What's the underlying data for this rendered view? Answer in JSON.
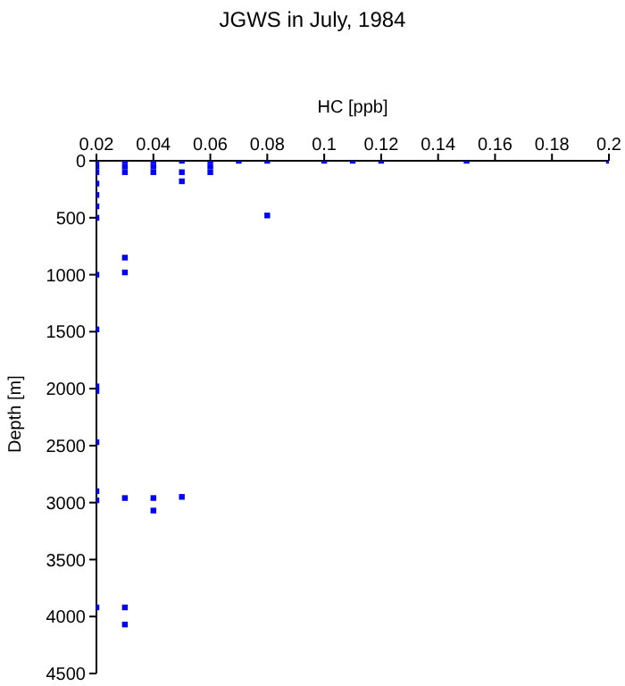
{
  "chart_data": {
    "type": "scatter",
    "title": "JGWS in July, 1984",
    "xlabel": "HC [ppb]",
    "ylabel": "Depth [m]",
    "series": [
      {
        "color": "#0000ff",
        "x": [
          0.02,
          0.02,
          0.02,
          0.02,
          0.02,
          0.02,
          0.02,
          0.02,
          0.02,
          0.02,
          0.02,
          0.02,
          0.02,
          0.02,
          0.02,
          0.03,
          0.03,
          0.03,
          0.03,
          0.03,
          0.03,
          0.03,
          0.03,
          0.04,
          0.04,
          0.04,
          0.04,
          0.04,
          0.05,
          0.05,
          0.05,
          0.05,
          0.06,
          0.06,
          0.06,
          0.07,
          0.08,
          0.08,
          0.1,
          0.11,
          0.12,
          0.15,
          0.2
        ],
        "values": [
          0,
          50,
          100,
          200,
          300,
          400,
          500,
          1000,
          1480,
          1980,
          2020,
          2470,
          2900,
          2980,
          3920,
          0,
          50,
          100,
          850,
          980,
          2960,
          3920,
          4070,
          0,
          50,
          100,
          2960,
          3070,
          0,
          100,
          180,
          2950,
          0,
          50,
          100,
          0,
          0,
          480,
          0,
          0,
          0,
          0,
          0
        ]
      }
    ],
    "xlim": [
      0.02,
      0.2
    ],
    "xticks": [
      0.02,
      0.04,
      0.06,
      0.08,
      0.1,
      0.12,
      0.14,
      0.16,
      0.18,
      0.2
    ],
    "ylim": [
      4500,
      0
    ],
    "yticks": [
      0,
      500,
      1000,
      1500,
      2000,
      2500,
      3000,
      3500,
      4000,
      4500
    ],
    "grid": false,
    "legend": false,
    "marker": "square"
  }
}
